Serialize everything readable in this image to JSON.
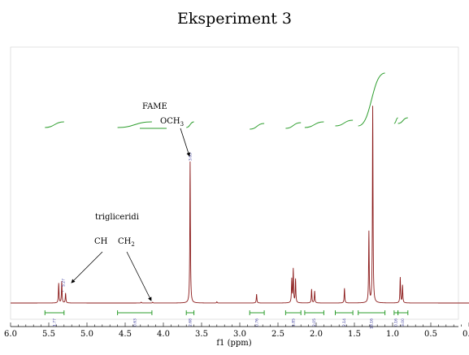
{
  "chart_data": {
    "type": "line",
    "title": "Eksperiment 3",
    "xlabel": "f1 (ppm)",
    "xlim": [
      6.0,
      0.0
    ],
    "x_ticks": [
      "6.0",
      "5.5",
      "5.0",
      "4.5",
      "4.0",
      "3.5",
      "3.0",
      "2.5",
      "2.0",
      "1.5",
      "1.0",
      "0.5",
      "0.0"
    ],
    "series": [
      {
        "peaks": [
          {
            "ppm": 5.37,
            "height": 0.1
          },
          {
            "ppm": 5.33,
            "height": 0.11
          },
          {
            "ppm": 5.28,
            "height": 0.05
          },
          {
            "ppm": 4.29,
            "height": 0.004
          },
          {
            "ppm": 4.14,
            "height": 0.004
          },
          {
            "ppm": 3.65,
            "height": 0.72
          },
          {
            "ppm": 3.3,
            "height": 0.006
          },
          {
            "ppm": 2.78,
            "height": 0.045
          },
          {
            "ppm": 2.32,
            "height": 0.12
          },
          {
            "ppm": 2.3,
            "height": 0.17
          },
          {
            "ppm": 2.27,
            "height": 0.12
          },
          {
            "ppm": 2.06,
            "height": 0.07
          },
          {
            "ppm": 2.02,
            "height": 0.06
          },
          {
            "ppm": 1.63,
            "height": 0.075
          },
          {
            "ppm": 1.31,
            "height": 0.36
          },
          {
            "ppm": 1.26,
            "height": 1.0
          },
          {
            "ppm": 0.9,
            "height": 0.13
          },
          {
            "ppm": 0.87,
            "height": 0.09
          }
        ]
      }
    ],
    "peak_labels": [
      {
        "ppm": 5.31,
        "label": "5.27"
      },
      {
        "ppm": 3.65,
        "label": "3.65"
      }
    ],
    "integrals": [
      {
        "from": 5.55,
        "to": 5.3,
        "value": "1.77"
      },
      {
        "from": 4.6,
        "to": 4.15,
        "value": "0.63"
      },
      {
        "from": 3.7,
        "to": 3.6,
        "value": "2.68"
      },
      {
        "from": 2.87,
        "to": 2.68,
        "value": "0.76"
      },
      {
        "from": 2.4,
        "to": 2.2,
        "value": "1.85"
      },
      {
        "from": 2.15,
        "to": 1.9,
        "value": "2.05"
      },
      {
        "from": 1.75,
        "to": 1.52,
        "value": "2.14"
      },
      {
        "from": 1.45,
        "to": 1.1,
        "value": "18.16"
      },
      {
        "from": 0.98,
        "to": 0.93,
        "value": "0.16"
      },
      {
        "from": 0.93,
        "to": 0.8,
        "value": "3.00"
      }
    ],
    "annotations": {
      "fame": "FAME",
      "och3_main": "OCH",
      "och3_sub": "3",
      "trigliceridi": "trigliceridi",
      "ch": "CH",
      "ch2_main": "CH",
      "ch2_sub": "2"
    },
    "colors": {
      "spectrum": "#8b1a1a",
      "integral_curve": "#2e9e2e",
      "integral_bracket": "#2e9e2e",
      "peak_label": "#3a3aa0"
    }
  }
}
